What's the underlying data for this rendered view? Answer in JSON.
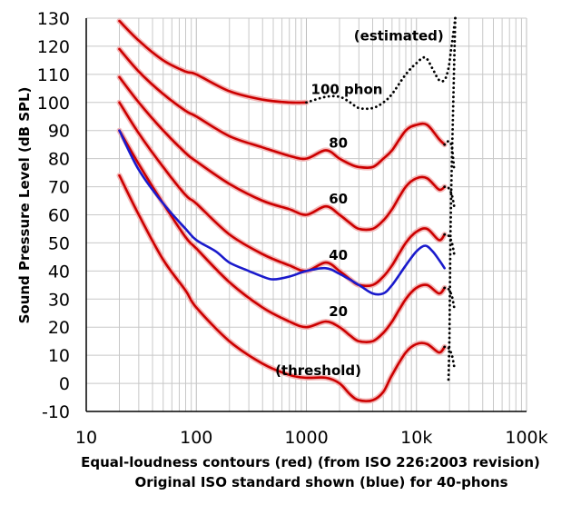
{
  "chart_data": {
    "type": "line",
    "xscale": "log",
    "xlim": [
      10,
      100000
    ],
    "ylim": [
      -10,
      130
    ],
    "grid": true,
    "ylabel": "Sound Pressure Level (dB SPL)",
    "caption_line1": "Equal-loudness contours (red) (from ISO 226:2003 revision)",
    "caption_line2": "Original ISO standard shown (blue) for 40-phons",
    "x_tick_labels": [
      {
        "value": 10,
        "label": "10"
      },
      {
        "value": 100,
        "label": "100"
      },
      {
        "value": 1000,
        "label": "1000"
      },
      {
        "value": 10000,
        "label": "10k"
      },
      {
        "value": 100000,
        "label": "100k"
      }
    ],
    "y_ticks": [
      -10,
      0,
      10,
      20,
      30,
      40,
      50,
      60,
      70,
      80,
      90,
      100,
      110,
      120,
      130
    ],
    "annotations": [
      {
        "text": "(estimated)",
        "x": 2700,
        "y": 122
      },
      {
        "text": "100 phon",
        "x": 1100,
        "y": 103
      },
      {
        "text": "80",
        "x": 1600,
        "y": 84
      },
      {
        "text": "60",
        "x": 1600,
        "y": 64
      },
      {
        "text": "40",
        "x": 1600,
        "y": 44
      },
      {
        "text": "20",
        "x": 1600,
        "y": 24
      },
      {
        "text": "(threshold)",
        "x": 520,
        "y": 3
      }
    ],
    "series": [
      {
        "name": "threshold",
        "color": "#cc0000",
        "style": "solid",
        "x": [
          20,
          30,
          50,
          80,
          100,
          200,
          400,
          700,
          1000,
          1500,
          2000,
          2500,
          3000,
          4000,
          5000,
          6000,
          8000,
          10000,
          12500,
          16000,
          18000
        ],
        "y": [
          74,
          60,
          44,
          33,
          27,
          15,
          7,
          3,
          2,
          2,
          0,
          -4,
          -6,
          -6,
          -3,
          3,
          11,
          14,
          14,
          11,
          13
        ]
      },
      {
        "name": "20",
        "color": "#cc0000",
        "style": "solid",
        "x": [
          20,
          30,
          50,
          80,
          100,
          200,
          400,
          700,
          1000,
          1500,
          2000,
          2500,
          3000,
          4000,
          5000,
          6000,
          8000,
          10000,
          12500,
          16000,
          18000
        ],
        "y": [
          90,
          78,
          64,
          52,
          48,
          36,
          27,
          22,
          20,
          22,
          20,
          17,
          15,
          15,
          18,
          22,
          30,
          34,
          35,
          32,
          34
        ]
      },
      {
        "name": "40",
        "color": "#cc0000",
        "style": "solid",
        "x": [
          20,
          30,
          50,
          80,
          100,
          200,
          400,
          700,
          1000,
          1500,
          2000,
          2500,
          3000,
          4000,
          5000,
          6000,
          8000,
          10000,
          12500,
          16000,
          18000
        ],
        "y": [
          100,
          89,
          77,
          67,
          64,
          53,
          46,
          42,
          40,
          43,
          40,
          37,
          35,
          35,
          38,
          42,
          50,
          54,
          55,
          51,
          53
        ]
      },
      {
        "name": "60",
        "color": "#cc0000",
        "style": "solid",
        "x": [
          20,
          30,
          50,
          80,
          100,
          200,
          400,
          700,
          1000,
          1500,
          2000,
          2500,
          3000,
          4000,
          5000,
          6000,
          8000,
          10000,
          12500,
          16000,
          18000
        ],
        "y": [
          109,
          100,
          90,
          82,
          79,
          71,
          65,
          62,
          60,
          63,
          60,
          57,
          55,
          55,
          58,
          62,
          70,
          73,
          73,
          69,
          70
        ]
      },
      {
        "name": "80",
        "color": "#cc0000",
        "style": "solid",
        "x": [
          20,
          30,
          50,
          80,
          100,
          200,
          400,
          700,
          1000,
          1500,
          2000,
          2500,
          3000,
          4000,
          5000,
          6000,
          8000,
          10000,
          12500,
          16000,
          18000
        ],
        "y": [
          119,
          111,
          103,
          97,
          95,
          88,
          84,
          81,
          80,
          83,
          80,
          78,
          77,
          77,
          80,
          83,
          90,
          92,
          92,
          87,
          85
        ]
      },
      {
        "name": "100",
        "color": "#cc0000",
        "style": "solid",
        "x": [
          20,
          30,
          50,
          80,
          100,
          200,
          400,
          700,
          1000
        ],
        "y": [
          129,
          122,
          115,
          111,
          110,
          104,
          101,
          100,
          100
        ]
      },
      {
        "name": "100 estimated",
        "color": "#000000",
        "style": "dotted",
        "x": [
          1000,
          1500,
          2000,
          2500,
          3000,
          4000,
          5000,
          6000,
          8000,
          10000,
          12000,
          14000,
          16000,
          18000,
          19500,
          20500,
          21500,
          22500
        ],
        "y": [
          100,
          102,
          102,
          100,
          98,
          98,
          100,
          103,
          110,
          114,
          116,
          112,
          108,
          108,
          112,
          118,
          124,
          130
        ]
      },
      {
        "name": "80 tail",
        "color": "#000000",
        "style": "dotted",
        "x": [
          18000,
          19000,
          20000,
          21000,
          22000
        ],
        "y": [
          85,
          86,
          86,
          84,
          76
        ]
      },
      {
        "name": "60 tail",
        "color": "#000000",
        "style": "dotted",
        "x": [
          18000,
          19000,
          20000,
          21000,
          22000
        ],
        "y": [
          70,
          70,
          69,
          67,
          63
        ]
      },
      {
        "name": "40 tail",
        "color": "#000000",
        "style": "dotted",
        "x": [
          18000,
          19000,
          20000,
          21000,
          22000
        ],
        "y": [
          53,
          53,
          52,
          50,
          46
        ]
      },
      {
        "name": "20 tail",
        "color": "#000000",
        "style": "dotted",
        "x": [
          18000,
          19000,
          20000,
          21000,
          22000
        ],
        "y": [
          34,
          34,
          33,
          31,
          27
        ]
      },
      {
        "name": "threshold tail",
        "color": "#000000",
        "style": "dotted",
        "x": [
          18000,
          19000,
          20000,
          21000,
          22000
        ],
        "y": [
          13,
          13,
          12,
          10,
          6
        ]
      },
      {
        "name": "upper boundary",
        "color": "#000000",
        "style": "dotted",
        "x": [
          22500,
          21600,
          21000,
          20500,
          20200,
          20000,
          19800,
          19500
        ],
        "y": [
          130,
          100,
          80,
          60,
          40,
          20,
          10,
          0
        ]
      },
      {
        "name": "original ISO 40",
        "color": "#1a1acc",
        "style": "solid",
        "x": [
          20,
          30,
          50,
          80,
          100,
          150,
          200,
          300,
          400,
          500,
          700,
          1000,
          1500,
          2000,
          3000,
          4000,
          5000,
          6000,
          8000,
          10000,
          12000,
          14000,
          16000,
          18000
        ],
        "y": [
          90,
          76,
          64,
          55,
          51,
          47,
          43,
          40,
          38,
          37,
          38,
          40,
          41,
          39,
          35,
          32,
          32,
          35,
          42,
          47,
          49,
          47,
          44,
          41
        ]
      }
    ]
  }
}
